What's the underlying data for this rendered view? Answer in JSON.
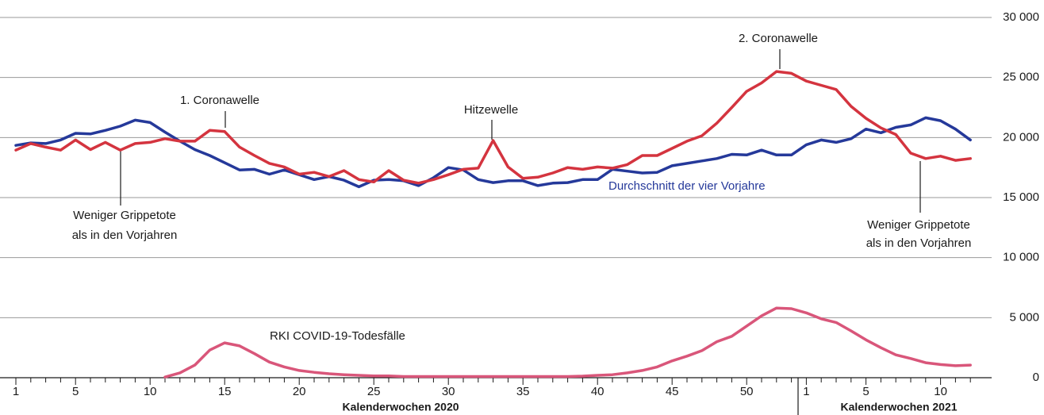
{
  "chart_data": {
    "type": "line",
    "categories": [
      "1",
      null,
      null,
      null,
      "5",
      null,
      null,
      null,
      null,
      "10",
      null,
      null,
      null,
      null,
      "15",
      null,
      null,
      null,
      null,
      "20",
      null,
      null,
      null,
      null,
      "25",
      null,
      null,
      null,
      null,
      "30",
      null,
      null,
      null,
      null,
      "35",
      null,
      null,
      null,
      null,
      "40",
      null,
      null,
      null,
      null,
      "45",
      null,
      null,
      null,
      null,
      "50",
      null,
      null,
      null,
      "1",
      null,
      null,
      null,
      "5",
      null,
      null,
      null,
      null,
      "10",
      null,
      null
    ],
    "x_axis_labels": [
      "Kalenderwochen 2020",
      "Kalenderwochen 2021"
    ],
    "series": [
      {
        "name": "Durchschnitt der vier Vorjahre",
        "color": "#25399a",
        "values": [
          19350,
          19550,
          19500,
          19800,
          20350,
          20300,
          20600,
          20950,
          21450,
          21250,
          20450,
          19700,
          19000,
          18500,
          17900,
          17300,
          17350,
          16950,
          17300,
          16900,
          16500,
          16750,
          16450,
          15900,
          16450,
          16500,
          16400,
          16000,
          16650,
          17500,
          17300,
          16500,
          16250,
          16400,
          16400,
          16000,
          16200,
          16250,
          16500,
          16500,
          17350,
          17200,
          17050,
          17100,
          17650,
          17850,
          18050,
          18250,
          18600,
          18550,
          18950,
          18550,
          18550,
          19400,
          19800,
          19600,
          19900,
          20700,
          20400,
          20850,
          21050,
          21650,
          21400,
          20700,
          19800
        ]
      },
      {
        "color": "#d4343f",
        "values": [
          18950,
          19500,
          19200,
          18950,
          19800,
          19000,
          19600,
          18950,
          19500,
          19600,
          19900,
          19700,
          19700,
          20600,
          20500,
          19200,
          18500,
          17850,
          17550,
          16950,
          17100,
          16750,
          17250,
          16500,
          16300,
          17250,
          16450,
          16200,
          16500,
          16900,
          17350,
          17450,
          19750,
          17550,
          16600,
          16700,
          17050,
          17500,
          17350,
          17550,
          17450,
          17750,
          18500,
          18500,
          19100,
          19700,
          20150,
          21200,
          22500,
          23850,
          24550,
          25500,
          25350,
          24700,
          24350,
          24000,
          22600,
          21600,
          20800,
          20250,
          18700,
          18250,
          18450,
          18100,
          18250
        ]
      },
      {
        "name": "RKI COVID-19-Todesfälle",
        "color": "#d9567a",
        "values": [
          null,
          null,
          null,
          null,
          null,
          null,
          null,
          null,
          null,
          null,
          50,
          400,
          1050,
          2300,
          2900,
          2650,
          2000,
          1300,
          900,
          600,
          450,
          330,
          250,
          200,
          150,
          150,
          100,
          100,
          100,
          100,
          100,
          100,
          100,
          100,
          100,
          100,
          100,
          100,
          130,
          200,
          250,
          400,
          600,
          900,
          1400,
          1800,
          2250,
          3000,
          3450,
          4300,
          5150,
          5800,
          5750,
          5400,
          4900,
          4600,
          3900,
          3150,
          2500,
          1900,
          1600,
          1250,
          1100,
          1000,
          1050
        ]
      }
    ],
    "ylim": [
      0,
      30000
    ],
    "yticks": [
      0,
      {
        "value": 5000,
        "label": "5 000"
      },
      {
        "value": 10000,
        "label": "10 000"
      },
      {
        "value": 15000,
        "label": "15 000"
      },
      {
        "value": 20000,
        "label": "20 000"
      },
      {
        "value": 25000,
        "label": "25 000"
      },
      {
        "value": 30000,
        "label": "30 000"
      }
    ],
    "grid": true,
    "annotations": [
      [
        "1. Coronawelle"
      ],
      [
        "Hitzewelle"
      ],
      [
        "2. Coronawelle"
      ],
      [
        "Weniger Grippetote",
        "als in den Vorjahren"
      ],
      [
        "Weniger Grippetote",
        "als in den Vorjahren"
      ]
    ]
  }
}
